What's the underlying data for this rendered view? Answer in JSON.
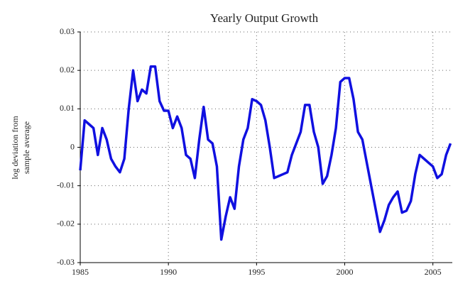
{
  "chart_data": {
    "type": "line",
    "title": "Yearly Output Growth",
    "ylabel": [
      "log deviation from",
      "sample average"
    ],
    "x": [
      1985,
      1985.25,
      1985.5,
      1985.75,
      1986,
      1986.25,
      1986.5,
      1986.75,
      1987,
      1987.25,
      1987.5,
      1987.75,
      1988,
      1988.25,
      1988.5,
      1988.75,
      1989,
      1989.25,
      1989.5,
      1989.75,
      1990,
      1990.25,
      1990.5,
      1990.75,
      1991,
      1991.25,
      1991.5,
      1991.75,
      1992,
      1992.25,
      1992.5,
      1992.75,
      1993,
      1993.25,
      1993.5,
      1993.75,
      1994,
      1994.25,
      1994.5,
      1994.75,
      1995,
      1995.25,
      1995.5,
      1995.75,
      1996,
      1996.25,
      1996.5,
      1996.75,
      1997,
      1997.25,
      1997.5,
      1997.75,
      1998,
      1998.25,
      1998.5,
      1998.75,
      1999,
      1999.25,
      1999.5,
      1999.75,
      2000,
      2000.25,
      2000.5,
      2000.75,
      2001,
      2001.25,
      2001.5,
      2001.75,
      2002,
      2002.25,
      2002.5,
      2002.75,
      2003,
      2003.25,
      2003.5,
      2003.75,
      2004,
      2004.25,
      2004.5,
      2004.75,
      2005,
      2005.25,
      2005.5,
      2005.75,
      2006
    ],
    "series": [
      {
        "color": "#1010e0",
        "values": [
          -0.006,
          0.007,
          0.006,
          0.005,
          -0.002,
          0.005,
          0.002,
          -0.003,
          -0.005,
          -0.0065,
          -0.003,
          0.01,
          0.02,
          0.012,
          0.015,
          0.014,
          0.021,
          0.021,
          0.012,
          0.0095,
          0.0095,
          0.005,
          0.008,
          0.005,
          -0.002,
          -0.003,
          -0.008,
          0.002,
          0.0105,
          0.002,
          0.001,
          -0.005,
          -0.024,
          -0.018,
          -0.013,
          -0.016,
          -0.005,
          0.002,
          0.005,
          0.0125,
          0.012,
          0.011,
          0.007,
          0,
          -0.008,
          -0.0075,
          -0.007,
          -0.0065,
          -0.002,
          0.001,
          0.004,
          0.011,
          0.011,
          0.004,
          0,
          -0.0095,
          -0.0075,
          -0.002,
          0.005,
          0.017,
          0.018,
          0.018,
          0.0125,
          0.004,
          0.002,
          -0.004,
          -0.01,
          -0.016,
          -0.022,
          -0.019,
          -0.015,
          -0.013,
          -0.0115,
          -0.017,
          -0.0165,
          -0.014,
          -0.007,
          -0.002,
          -0.003,
          -0.004,
          -0.005,
          -0.008,
          -0.007,
          -0.002,
          0.001
        ]
      }
    ],
    "xlim": [
      1985,
      2006.1
    ],
    "xticks": [
      1985,
      1990,
      1995,
      2000,
      2005
    ],
    "ylim": [
      -0.03,
      0.03
    ],
    "yticks": [
      0.03,
      0.02,
      0.01,
      0,
      -0.01,
      -0.02,
      -0.03
    ],
    "grid": true
  }
}
